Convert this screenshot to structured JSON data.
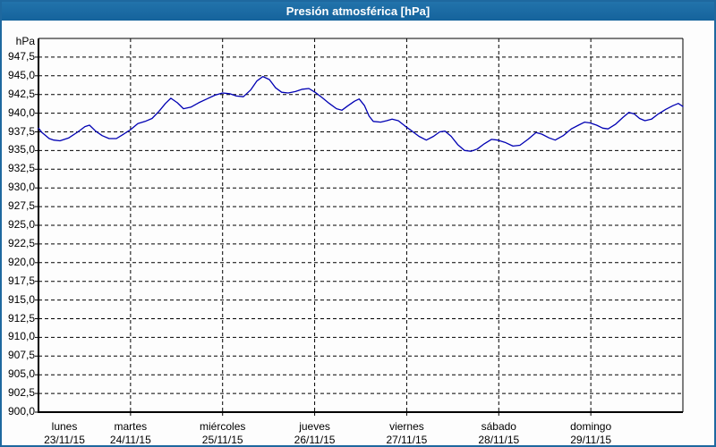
{
  "window": {
    "title": "Presión atmosférica [hPa]",
    "colors": {
      "border": "#1e689f",
      "titlebar_top": "#2273ab",
      "titlebar_bottom": "#15639c",
      "background": "#fdfdfd",
      "grid": "#000000",
      "line": "#0000b3",
      "text": "#000000"
    }
  },
  "chart_data": {
    "type": "line",
    "title": "Presión atmosférica [hPa]",
    "ylabel": "hPa",
    "grid": true,
    "legend": false,
    "y_axis": {
      "min": 900.0,
      "max": 950.0,
      "tick_step": 2.5,
      "tick_labels": [
        "947,5",
        "945,0",
        "942,5",
        "940,0",
        "937,5",
        "935,0",
        "932,5",
        "930,0",
        "927,5",
        "925,0",
        "922,5",
        "920,0",
        "917,5",
        "915,0",
        "912,5",
        "910,0",
        "907,5",
        "905,0",
        "902,5",
        "900,0"
      ]
    },
    "x_axis": {
      "hours_total": 168,
      "hours_per_day": 24,
      "days": [
        {
          "name": "lunes",
          "date": "23/11/15"
        },
        {
          "name": "martes",
          "date": "24/11/15"
        },
        {
          "name": "miércoles",
          "date": "25/11/15"
        },
        {
          "name": "jueves",
          "date": "26/11/15"
        },
        {
          "name": "viernes",
          "date": "27/11/15"
        },
        {
          "name": "sábado",
          "date": "28/11/15"
        },
        {
          "name": "domingo",
          "date": "29/11/15"
        }
      ]
    },
    "series": [
      {
        "name": "Presión atmosférica",
        "unit": "hPa",
        "color": "#0000b3",
        "points": [
          [
            0,
            938.0
          ],
          [
            0.9,
            937.4
          ],
          [
            2.8,
            936.6
          ],
          [
            4,
            936.4
          ],
          [
            5.6,
            936.3
          ],
          [
            7.9,
            936.7
          ],
          [
            10.3,
            937.5
          ],
          [
            12.1,
            938.2
          ],
          [
            13.3,
            938.4
          ],
          [
            14.9,
            937.6
          ],
          [
            16.6,
            937.0
          ],
          [
            18.4,
            936.6
          ],
          [
            20.3,
            936.6
          ],
          [
            21.9,
            937.1
          ],
          [
            24,
            937.8
          ],
          [
            25.9,
            938.6
          ],
          [
            27.8,
            938.9
          ],
          [
            29.6,
            939.3
          ],
          [
            31.5,
            940.3
          ],
          [
            33.1,
            941.3
          ],
          [
            34.5,
            942.0
          ],
          [
            36.2,
            941.4
          ],
          [
            37.8,
            940.6
          ],
          [
            39.7,
            940.8
          ],
          [
            41.8,
            941.4
          ],
          [
            43.9,
            941.9
          ],
          [
            46,
            942.4
          ],
          [
            48,
            942.7
          ],
          [
            49.9,
            942.6
          ],
          [
            51.6,
            942.3
          ],
          [
            53.4,
            942.2
          ],
          [
            55.3,
            943.1
          ],
          [
            56.9,
            944.3
          ],
          [
            58.5,
            944.9
          ],
          [
            60.2,
            944.5
          ],
          [
            61.8,
            943.4
          ],
          [
            63.4,
            942.8
          ],
          [
            65.1,
            942.7
          ],
          [
            67,
            942.9
          ],
          [
            68.8,
            943.2
          ],
          [
            70.5,
            943.3
          ],
          [
            72.1,
            942.8
          ],
          [
            73.9,
            942.1
          ],
          [
            75.8,
            941.3
          ],
          [
            77.7,
            940.6
          ],
          [
            79.1,
            940.4
          ],
          [
            80.7,
            941.0
          ],
          [
            82.4,
            941.6
          ],
          [
            83.6,
            941.9
          ],
          [
            85,
            941.0
          ],
          [
            86.2,
            939.6
          ],
          [
            87.3,
            938.9
          ],
          [
            89.2,
            938.8
          ],
          [
            90.8,
            939.0
          ],
          [
            92.2,
            939.2
          ],
          [
            93.8,
            939.0
          ],
          [
            95.5,
            938.3
          ],
          [
            97.4,
            937.6
          ],
          [
            99.2,
            936.9
          ],
          [
            101.1,
            936.4
          ],
          [
            103,
            936.9
          ],
          [
            104.6,
            937.5
          ],
          [
            106,
            937.6
          ],
          [
            107.6,
            936.9
          ],
          [
            109.3,
            935.8
          ],
          [
            111.1,
            935.0
          ],
          [
            112.8,
            934.9
          ],
          [
            114.4,
            935.2
          ],
          [
            116.2,
            935.9
          ],
          [
            118.1,
            936.5
          ],
          [
            119.7,
            936.4
          ],
          [
            121.6,
            936.1
          ],
          [
            123.7,
            935.6
          ],
          [
            125.5,
            935.7
          ],
          [
            127.6,
            936.5
          ],
          [
            129.7,
            937.4
          ],
          [
            131.2,
            937.2
          ],
          [
            133.1,
            936.7
          ],
          [
            134.7,
            936.4
          ],
          [
            136.8,
            937.0
          ],
          [
            138.9,
            937.9
          ],
          [
            140.8,
            938.4
          ],
          [
            142.4,
            938.8
          ],
          [
            143.8,
            938.7
          ],
          [
            145.5,
            938.4
          ],
          [
            147.1,
            938.0
          ],
          [
            148.5,
            937.9
          ],
          [
            150.4,
            938.5
          ],
          [
            152.3,
            939.4
          ],
          [
            153.9,
            940.1
          ],
          [
            155.3,
            939.9
          ],
          [
            156.7,
            939.3
          ],
          [
            158.1,
            939.0
          ],
          [
            159.8,
            939.2
          ],
          [
            161.6,
            939.9
          ],
          [
            163.5,
            940.5
          ],
          [
            165.4,
            941.0
          ],
          [
            166.8,
            941.3
          ],
          [
            168,
            940.9
          ]
        ]
      }
    ]
  }
}
